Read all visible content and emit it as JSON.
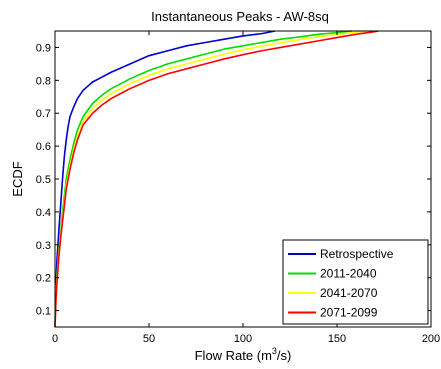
{
  "chart_data": {
    "type": "line",
    "title": "Instantaneous Peaks - AW-8sq",
    "xlabel": "Flow Rate (m",
    "xlabel_sup": "3",
    "xlabel_suffix": "/s)",
    "ylabel": "ECDF",
    "xlim": [
      0,
      200
    ],
    "ylim": [
      0.05,
      0.95
    ],
    "x_ticks": [
      0,
      50,
      100,
      150,
      200
    ],
    "y_ticks": [
      0.1,
      0.2,
      0.3,
      0.4,
      0.5,
      0.6,
      0.7,
      0.8,
      0.9
    ],
    "grid": false,
    "legend_position": "bottom-right",
    "series": [
      {
        "name": "Retrospective",
        "color": "#0000cc",
        "points": [
          [
            0,
            0.05
          ],
          [
            0.5,
            0.17
          ],
          [
            1,
            0.25
          ],
          [
            2,
            0.34
          ],
          [
            3,
            0.42
          ],
          [
            4,
            0.5
          ],
          [
            5,
            0.57
          ],
          [
            6,
            0.62
          ],
          [
            7,
            0.66
          ],
          [
            8,
            0.69
          ],
          [
            10,
            0.72
          ],
          [
            12,
            0.745
          ],
          [
            15,
            0.77
          ],
          [
            20,
            0.795
          ],
          [
            25,
            0.81
          ],
          [
            30,
            0.825
          ],
          [
            40,
            0.85
          ],
          [
            50,
            0.875
          ],
          [
            60,
            0.89
          ],
          [
            70,
            0.905
          ],
          [
            80,
            0.915
          ],
          [
            90,
            0.925
          ],
          [
            100,
            0.935
          ],
          [
            110,
            0.942
          ],
          [
            117,
            0.95
          ]
        ]
      },
      {
        "name": "2011-2040",
        "color": "#00dd00",
        "points": [
          [
            0,
            0.05
          ],
          [
            0.5,
            0.14
          ],
          [
            1,
            0.2
          ],
          [
            2,
            0.28
          ],
          [
            3,
            0.34
          ],
          [
            4,
            0.4
          ],
          [
            5,
            0.45
          ],
          [
            6,
            0.5
          ],
          [
            8,
            0.56
          ],
          [
            10,
            0.61
          ],
          [
            12,
            0.65
          ],
          [
            15,
            0.69
          ],
          [
            20,
            0.73
          ],
          [
            25,
            0.755
          ],
          [
            30,
            0.775
          ],
          [
            40,
            0.805
          ],
          [
            50,
            0.83
          ],
          [
            60,
            0.85
          ],
          [
            70,
            0.865
          ],
          [
            80,
            0.88
          ],
          [
            90,
            0.895
          ],
          [
            100,
            0.905
          ],
          [
            110,
            0.915
          ],
          [
            120,
            0.925
          ],
          [
            130,
            0.932
          ],
          [
            140,
            0.94
          ],
          [
            150,
            0.945
          ],
          [
            158,
            0.95
          ]
        ]
      },
      {
        "name": "2041-2070",
        "color": "#ffff00",
        "points": [
          [
            0,
            0.05
          ],
          [
            0.5,
            0.13
          ],
          [
            1,
            0.19
          ],
          [
            2,
            0.27
          ],
          [
            3,
            0.33
          ],
          [
            4,
            0.38
          ],
          [
            5,
            0.43
          ],
          [
            6,
            0.48
          ],
          [
            8,
            0.54
          ],
          [
            10,
            0.59
          ],
          [
            12,
            0.63
          ],
          [
            15,
            0.675
          ],
          [
            20,
            0.715
          ],
          [
            25,
            0.74
          ],
          [
            30,
            0.76
          ],
          [
            40,
            0.79
          ],
          [
            50,
            0.815
          ],
          [
            60,
            0.835
          ],
          [
            70,
            0.85
          ],
          [
            80,
            0.865
          ],
          [
            90,
            0.88
          ],
          [
            100,
            0.893
          ],
          [
            110,
            0.904
          ],
          [
            120,
            0.914
          ],
          [
            130,
            0.924
          ],
          [
            140,
            0.932
          ],
          [
            150,
            0.94
          ],
          [
            160,
            0.946
          ],
          [
            166,
            0.95
          ]
        ]
      },
      {
        "name": "2071-2099",
        "color": "#ff0000",
        "points": [
          [
            0,
            0.05
          ],
          [
            0.5,
            0.13
          ],
          [
            1,
            0.18
          ],
          [
            2,
            0.26
          ],
          [
            3,
            0.32
          ],
          [
            4,
            0.37
          ],
          [
            5,
            0.42
          ],
          [
            6,
            0.47
          ],
          [
            8,
            0.53
          ],
          [
            10,
            0.58
          ],
          [
            12,
            0.62
          ],
          [
            15,
            0.665
          ],
          [
            20,
            0.7
          ],
          [
            25,
            0.725
          ],
          [
            30,
            0.745
          ],
          [
            40,
            0.775
          ],
          [
            50,
            0.8
          ],
          [
            60,
            0.82
          ],
          [
            70,
            0.835
          ],
          [
            80,
            0.85
          ],
          [
            90,
            0.865
          ],
          [
            100,
            0.878
          ],
          [
            110,
            0.89
          ],
          [
            120,
            0.9
          ],
          [
            130,
            0.91
          ],
          [
            140,
            0.92
          ],
          [
            150,
            0.93
          ],
          [
            160,
            0.94
          ],
          [
            170,
            0.948
          ],
          [
            172,
            0.95
          ]
        ]
      }
    ]
  }
}
